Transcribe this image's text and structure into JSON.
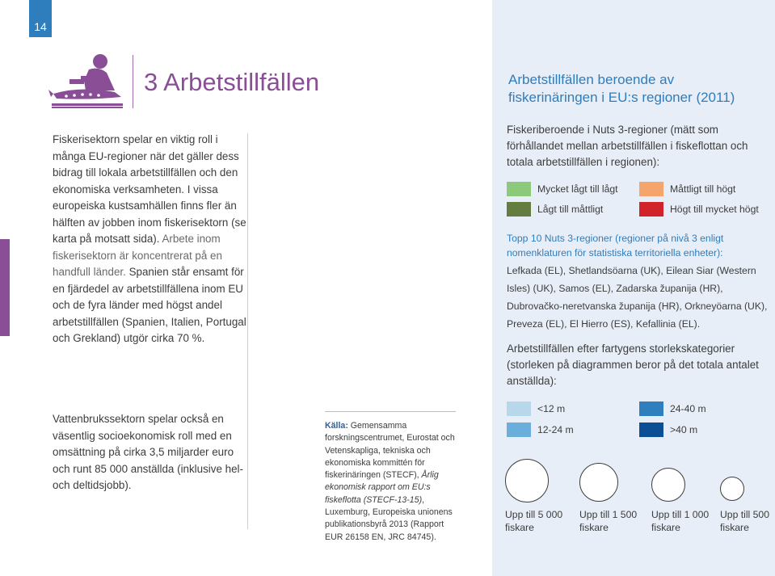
{
  "page": {
    "number": "14"
  },
  "chapter": {
    "title": "3 Arbetstillfällen"
  },
  "body": {
    "para1_main": "Fiskerisektorn spelar en viktig roll i många EU-regioner när det gäller dess bidrag till lokala arbetstillfällen och den ekonomiska verksamheten. I vissa europeiska kustsamhällen finns fler än hälften av jobben inom fiskerisektorn (se karta på motsatt sida).",
    "para1_dim": " Arbete inom fiskerisektorn är koncentrerat på en handfull länder.",
    "para1_tail": " Spanien står ensamt för en fjärdedel av arbetstillfällena inom EU och de fyra länder med högst andel arbetstillfällen (Spanien, Italien, Portugal och Grekland) utgör cirka 70 %.",
    "para2": "Vattenbrukssektorn spelar också en väsentlig socioekonomisk roll med en omsättning på cirka 3,5 miljarder euro och runt 85 000 anställda (inklusive hel- och deltidsjobb)."
  },
  "source": {
    "label": "Källa:",
    "text1": " Gemensamma forskningscentrumet, Eurostat och Vetenskapliga, tekniska och ekonomiska kommittén för fiskerinäringen (STECF),",
    "title": "Årlig ekonomisk rapport om EU:s fiskeflotta (STECF-13-15)",
    "text2": ", Luxemburg, Europeiska unionens publikationsbyrå 2013 (Rapport EUR 26158 EN, JRC 84745)."
  },
  "panel": {
    "title": "Arbetstillfällen beroende av fiskerinäringen i EU:s regioner (2011)",
    "intro": "Fiskeriberoende i Nuts 3-regioner (mätt som förhållandet mellan arbetstillfällen i fiskeflottan och totala arbetstillfällen i regionen):",
    "dependency_legend": [
      {
        "label": "Mycket lågt till lågt",
        "color": "#8cc97a"
      },
      {
        "label": "Måttligt till högt",
        "color": "#f5a46c"
      },
      {
        "label": "Lågt till måttligt",
        "color": "#647c3f"
      },
      {
        "label": "Högt till mycket högt",
        "color": "#d2232a"
      }
    ],
    "top10_heading": "Topp 10 Nuts 3-regioner (regioner på nivå 3 enligt nomenklaturen för statistiska territoriella enheter):",
    "top10_list": "Lefkada (EL), Shetlandsöarna (UK), Eilean Siar (Western Isles) (UK), Samos (EL), Zadarska županija (HR), Dubrovačko-neretvanska županija (HR), Orkneyöarna (UK), Preveza (EL), El Hierro (ES), Kefallinia (EL).",
    "vessel_heading": "Arbetstillfällen efter fartygens storlekskategorier (storleken på diagrammen beror på det totala antalet anställda):",
    "vessel_legend": [
      {
        "label": "<12 m",
        "color": "#b7d7ea"
      },
      {
        "label": "24-40 m",
        "color": "#2f7fbf"
      },
      {
        "label": "12-24 m",
        "color": "#6aaedb"
      },
      {
        "label": ">40 m",
        "color": "#0d4f94"
      }
    ],
    "circles": [
      {
        "line1": "Upp till 5 000",
        "line2": "fiskare"
      },
      {
        "line1": "Upp till 1 500",
        "line2": "fiskare"
      },
      {
        "line1": "Upp till 1 000",
        "line2": "fiskare"
      },
      {
        "line1": "Upp till 500",
        "line2": "fiskare"
      }
    ]
  }
}
